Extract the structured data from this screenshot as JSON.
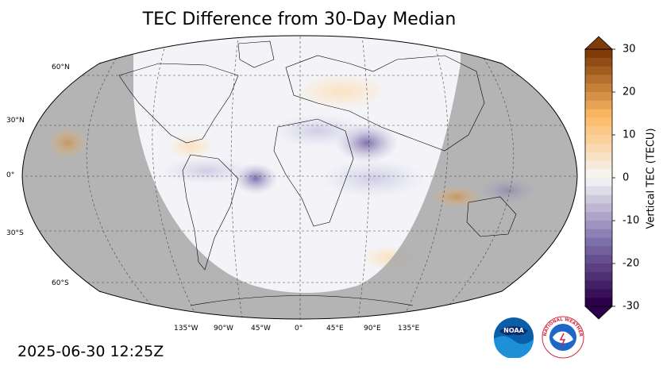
{
  "title": "TEC Difference from 30-Day Median",
  "timestamp": "2025-06-30 12:25Z",
  "colorbar": {
    "label": "Vertical TEC (TECU)",
    "ticks": [
      "30",
      "20",
      "10",
      "0",
      "-10",
      "-20",
      "-30"
    ],
    "range": [
      -30,
      30
    ],
    "colors": {
      "min": "#2d004b",
      "low": "#8073ac",
      "mid": "#f7f7f7",
      "high": "#fdb863",
      "max": "#7f3b08"
    }
  },
  "lat_labels": [
    "60°N",
    "30°N",
    "0°",
    "30°S",
    "60°S"
  ],
  "lon_labels": [
    "135°W",
    "90°W",
    "45°W",
    "0°",
    "45°E",
    "90°E",
    "135°E"
  ],
  "logos": {
    "noaa": {
      "icon": "noaa-logo",
      "text": "NOAA"
    },
    "nws": {
      "icon": "nws-logo",
      "text": "NATIONAL WEATHER SERVICE"
    }
  },
  "map": {
    "projection": "Robinson",
    "night_shade": "#a8a8a8",
    "day_fill": "#f4f4f8"
  }
}
